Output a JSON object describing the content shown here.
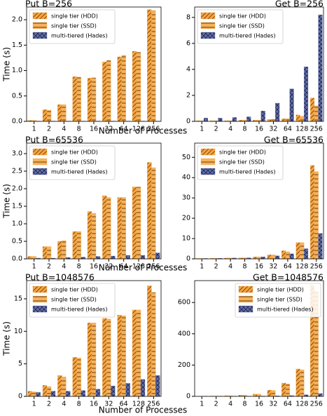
{
  "chart_data": [
    {
      "type": "bar",
      "title": "Put B=256",
      "title_loc": "left",
      "ylabel": "Time (s)",
      "xlabel": "Number of Processes",
      "categories": [
        "1",
        "2",
        "4",
        "8",
        "16",
        "32",
        "64",
        "128",
        "256"
      ],
      "ylim": [
        0,
        2.25
      ],
      "yticks": [
        {
          "value": 0,
          "label": "0.0"
        },
        {
          "value": 0.5,
          "label": "0.5"
        },
        {
          "value": 1,
          "label": "1.0"
        },
        {
          "value": 1.5,
          "label": "1.5"
        },
        {
          "value": 2,
          "label": "2.0"
        }
      ],
      "legend": "upper left",
      "series": [
        {
          "name": "single tier (HDD)",
          "color": "#f4a442",
          "hatch": "//",
          "values": [
            0.02,
            0.23,
            0.33,
            0.88,
            0.85,
            1.17,
            1.27,
            1.38,
            2.2
          ]
        },
        {
          "name": "single tier (SSD)",
          "color": "#f6b15a",
          "hatch": "-",
          "values": [
            0.02,
            0.22,
            0.33,
            0.87,
            0.86,
            1.2,
            1.3,
            1.36,
            2.18
          ]
        },
        {
          "name": "multi-tiered (Hades)",
          "color": "#6470a8",
          "hatch": "x",
          "values": [
            0.005,
            0.005,
            0.005,
            0.005,
            0.005,
            0.005,
            0.005,
            0.005,
            0.005
          ]
        }
      ]
    },
    {
      "type": "bar",
      "title": "Get B=256",
      "title_loc": "right",
      "categories": [
        "1",
        "2",
        "4",
        "8",
        "16",
        "32",
        "64",
        "128",
        "256"
      ],
      "ylim": [
        0,
        8.8
      ],
      "yticks": [
        0,
        2,
        4,
        6,
        8
      ],
      "legend": "upper left",
      "series": [
        {
          "name": "single tier (HDD)",
          "color": "#f4a442",
          "hatch": "//",
          "values": [
            0.05,
            0.05,
            0.05,
            0.1,
            0.1,
            0.15,
            0.2,
            0.5,
            1.8
          ]
        },
        {
          "name": "single tier (SSD)",
          "color": "#f6b15a",
          "hatch": "-",
          "values": [
            0.05,
            0.05,
            0.05,
            0.1,
            0.1,
            0.15,
            0.2,
            0.4,
            1.2
          ]
        },
        {
          "name": "multi-tiered (Hades)",
          "color": "#6470a8",
          "hatch": "x",
          "values": [
            0.25,
            0.25,
            0.3,
            0.35,
            0.8,
            1.4,
            2.5,
            4.2,
            8.2
          ]
        }
      ]
    },
    {
      "type": "bar",
      "title": "Put B=65536",
      "title_loc": "left",
      "ylabel": "Time (s)",
      "xlabel": "Number of Processes",
      "categories": [
        "1",
        "2",
        "4",
        "8",
        "16",
        "32",
        "64",
        "128",
        "256"
      ],
      "ylim": [
        0,
        3.3
      ],
      "yticks": [
        {
          "value": 0,
          "label": "0.0"
        },
        {
          "value": 0.5,
          "label": "0.5"
        },
        {
          "value": 1,
          "label": "1.0"
        },
        {
          "value": 1.5,
          "label": "1.5"
        },
        {
          "value": 2,
          "label": "2.0"
        },
        {
          "value": 2.5,
          "label": "2.5"
        },
        {
          "value": 3,
          "label": "3.0"
        }
      ],
      "legend": "upper left",
      "series": [
        {
          "name": "single tier (HDD)",
          "color": "#f4a442",
          "hatch": "//",
          "values": [
            0.07,
            0.35,
            0.5,
            0.78,
            1.35,
            1.8,
            1.75,
            2.05,
            2.75
          ]
        },
        {
          "name": "single tier (SSD)",
          "color": "#f6b15a",
          "hatch": "-",
          "values": [
            0.07,
            0.35,
            0.52,
            0.78,
            1.3,
            1.75,
            1.75,
            2.05,
            2.6
          ]
        },
        {
          "name": "multi-tiered (Hades)",
          "color": "#6470a8",
          "hatch": "x",
          "values": [
            0.02,
            0.02,
            0.04,
            0.05,
            0.07,
            0.08,
            0.1,
            0.1,
            0.17
          ]
        }
      ]
    },
    {
      "type": "bar",
      "title": "Get B=65536",
      "title_loc": "right",
      "categories": [
        "1",
        "2",
        "4",
        "8",
        "16",
        "32",
        "64",
        "128",
        "256"
      ],
      "ylim": [
        0,
        57
      ],
      "yticks": [
        0,
        10,
        20,
        30,
        40,
        50
      ],
      "legend": "upper left",
      "series": [
        {
          "name": "single tier (HDD)",
          "color": "#f4a442",
          "hatch": "//",
          "values": [
            0.2,
            0.3,
            0.4,
            0.5,
            1,
            2,
            4,
            8,
            46
          ]
        },
        {
          "name": "single tier (SSD)",
          "color": "#f6b15a",
          "hatch": "-",
          "values": [
            0.2,
            0.3,
            0.4,
            0.5,
            1,
            2,
            3.5,
            8,
            43
          ]
        },
        {
          "name": "multi-tiered (Hades)",
          "color": "#6470a8",
          "hatch": "x",
          "values": [
            0.2,
            0.3,
            0.4,
            0.5,
            1,
            1.5,
            2.5,
            5,
            12.5
          ]
        }
      ]
    },
    {
      "type": "bar",
      "title": "Put B=1048576",
      "title_loc": "left",
      "ylabel": "Time (s)",
      "xlabel": "Number of Processes",
      "categories": [
        "1",
        "2",
        "4",
        "8",
        "16",
        "32",
        "64",
        "128",
        "256"
      ],
      "ylim": [
        0,
        17.8
      ],
      "yticks": [
        0,
        5,
        10,
        15
      ],
      "legend": "upper left",
      "series": [
        {
          "name": "single tier (HDD)",
          "color": "#f4a442",
          "hatch": "//",
          "values": [
            0.8,
            1.7,
            3.2,
            6,
            11.3,
            12,
            12.5,
            13.3,
            17
          ]
        },
        {
          "name": "single tier (SSD)",
          "color": "#f6b15a",
          "hatch": "-",
          "values": [
            0.7,
            1.5,
            3,
            5.9,
            11.3,
            11.9,
            12.4,
            13.3,
            16
          ]
        },
        {
          "name": "multi-tiered (Hades)",
          "color": "#6470a8",
          "hatch": "x",
          "values": [
            0.6,
            0.8,
            0.8,
            0.9,
            1.1,
            1.6,
            2,
            2.6,
            3.2
          ]
        }
      ]
    },
    {
      "type": "bar",
      "title": "Get B=1048576",
      "title_loc": "right",
      "categories": [
        "1",
        "2",
        "4",
        "8",
        "16",
        "32",
        "64",
        "128",
        "256"
      ],
      "ylim": [
        0,
        740
      ],
      "yticks": [
        0,
        200,
        400,
        600
      ],
      "legend": "upper right",
      "series": [
        {
          "name": "single tier (HDD)",
          "color": "#f4a442",
          "hatch": "//",
          "values": [
            1,
            2,
            4,
            8,
            15,
            40,
            85,
            175,
            710
          ]
        },
        {
          "name": "single tier (SSD)",
          "color": "#f6b15a",
          "hatch": "-",
          "values": [
            1,
            2,
            4,
            8,
            15,
            38,
            80,
            170,
            670
          ]
        },
        {
          "name": "multi-tiered (Hades)",
          "color": "#6470a8",
          "hatch": "x",
          "values": [
            1,
            1,
            1,
            1,
            2,
            3,
            5,
            10,
            18
          ]
        }
      ]
    }
  ]
}
